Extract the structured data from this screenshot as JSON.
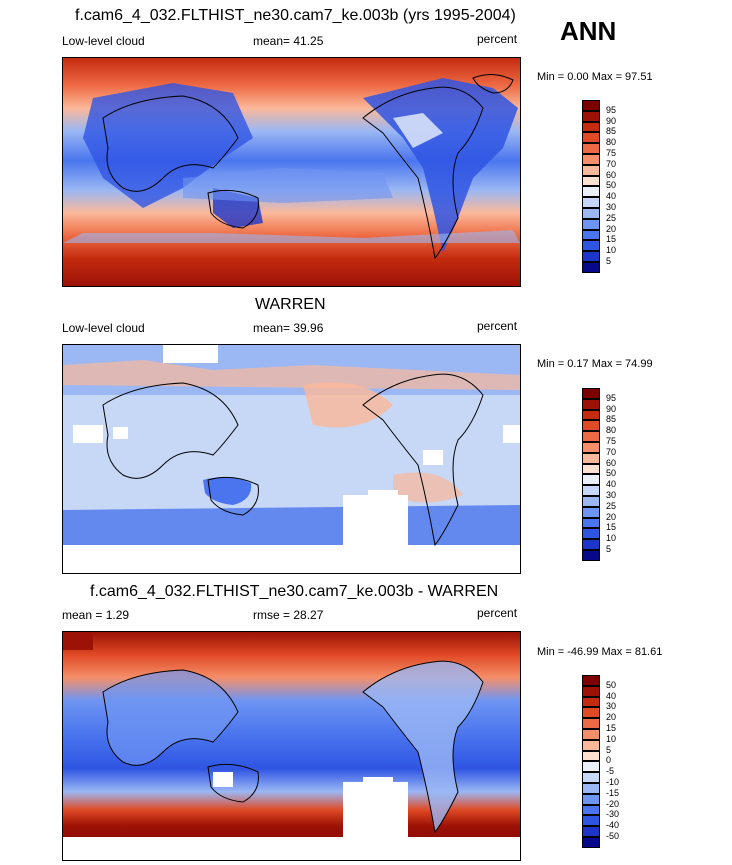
{
  "season": "ANN",
  "panels": [
    {
      "title": "f.cam6_4_032.FLTHIST_ne30.cam7_ke.003b (yrs 1995-2004)",
      "left_label": "Low-level cloud",
      "stat_label": "mean=  41.25",
      "units": "percent",
      "min_max": "Min =   0.00 Max =  97.51",
      "colorbar": {
        "colors": [
          "#08088a",
          "#1d36c8",
          "#2f55e3",
          "#4a75ee",
          "#6f95f2",
          "#9bb7f4",
          "#c7d7f6",
          "#eaf1fb",
          "#fde0d0",
          "#fbb89a",
          "#f58f6a",
          "#ee6a43",
          "#e04a25",
          "#c42b10",
          "#9c1206",
          "#7d0000"
        ],
        "labels": [
          "5",
          "10",
          "15",
          "20",
          "25",
          "30",
          "40",
          "50",
          "60",
          "70",
          "75",
          "80",
          "85",
          "90",
          "95"
        ]
      }
    },
    {
      "title": "WARREN",
      "left_label": "Low-level cloud",
      "stat_label": "mean=  39.96",
      "units": "percent",
      "min_max": "Min =   0.17 Max =  74.99",
      "colorbar": {
        "colors": [
          "#08088a",
          "#1d36c8",
          "#2f55e3",
          "#4a75ee",
          "#6f95f2",
          "#9bb7f4",
          "#c7d7f6",
          "#eaf1fb",
          "#fde0d0",
          "#fbb89a",
          "#f58f6a",
          "#ee6a43",
          "#e04a25",
          "#c42b10",
          "#9c1206",
          "#7d0000"
        ],
        "labels": [
          "5",
          "10",
          "15",
          "20",
          "25",
          "30",
          "40",
          "50",
          "60",
          "70",
          "75",
          "80",
          "85",
          "90",
          "95"
        ]
      }
    },
    {
      "title": "f.cam6_4_032.FLTHIST_ne30.cam7_ke.003b - WARREN",
      "left_label": "mean =   1.29",
      "stat_label": "rmse =  28.27",
      "units": "percent",
      "min_max": "Min = -46.99 Max =  81.61",
      "colorbar": {
        "colors": [
          "#08088a",
          "#1d36c8",
          "#2f55e3",
          "#4a75ee",
          "#6f95f2",
          "#9bb7f4",
          "#c7d7f6",
          "#eaf1fb",
          "#fde0d0",
          "#fbb89a",
          "#f58f6a",
          "#ee6a43",
          "#e04a25",
          "#c42b10",
          "#9c1206",
          "#7d0000"
        ],
        "labels": [
          "-50",
          "-40",
          "-30",
          "-20",
          "-15",
          "-10",
          "-5",
          "0",
          "5",
          "10",
          "15",
          "20",
          "30",
          "40",
          "50"
        ]
      }
    }
  ]
}
